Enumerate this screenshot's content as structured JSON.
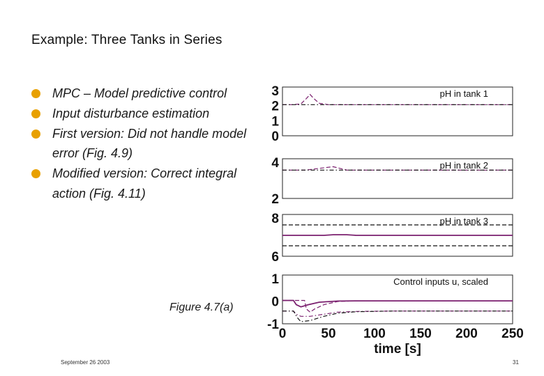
{
  "slide": {
    "title": "Example: Three Tanks in Series",
    "bullets": [
      "MPC – Model predictive control",
      "Input disturbance estimation",
      "First version: Did not handle model error (Fig. 4.9)",
      "Modified version: Correct integral action (Fig. 4.11)"
    ],
    "caption": "Figure 4.7(a)",
    "footer_date": "September 26 2003",
    "page_number": "31"
  },
  "colors": {
    "bullet": "#e8a000",
    "series_primary": "#7a1f6e",
    "series_reference": "#111111"
  },
  "chart_data": [
    {
      "type": "line",
      "title": "pH in tank 1",
      "ylim": [
        -0.3,
        3.3
      ],
      "yticks": [
        "3",
        "2",
        "1",
        "0"
      ],
      "xlim": [
        0,
        250
      ],
      "series": [
        {
          "style": "dashed",
          "color": "#7a1f6e",
          "x": [
            0,
            10,
            20,
            26,
            30,
            34,
            40,
            50,
            250
          ],
          "y": [
            2.0,
            2.0,
            2.05,
            2.45,
            2.75,
            2.45,
            2.1,
            2.0,
            2.0
          ]
        },
        {
          "style": "dash-dot",
          "color": "#111111",
          "x": [
            0,
            250
          ],
          "y": [
            2.0,
            2.0
          ]
        }
      ]
    },
    {
      "type": "line",
      "title": "pH in tank 2",
      "ylim": [
        1.5,
        5.0
      ],
      "yticks": [
        "4",
        "2"
      ],
      "xlim": [
        0,
        250
      ],
      "series": [
        {
          "style": "dashed",
          "color": "#7a1f6e",
          "x": [
            0,
            25,
            40,
            55,
            70,
            250
          ],
          "y": [
            4.0,
            4.0,
            4.15,
            4.3,
            4.0,
            4.0
          ]
        },
        {
          "style": "dash-dot",
          "color": "#111111",
          "x": [
            0,
            250
          ],
          "y": [
            4.0,
            4.0
          ]
        }
      ]
    },
    {
      "type": "line",
      "title": "pH in tank 3",
      "ylim": [
        5.0,
        9.0
      ],
      "yticks": [
        "8",
        "6"
      ],
      "xlim": [
        0,
        250
      ],
      "series": [
        {
          "style": "solid",
          "color": "#7a1f6e",
          "x": [
            0,
            45,
            55,
            70,
            80,
            250
          ],
          "y": [
            7.0,
            7.0,
            7.06,
            7.06,
            7.0,
            7.0
          ]
        },
        {
          "style": "dashed",
          "color": "#111111",
          "x": [
            0,
            250
          ],
          "y": [
            8.0,
            8.0
          ]
        },
        {
          "style": "dashed",
          "color": "#111111",
          "x": [
            0,
            250
          ],
          "y": [
            6.0,
            6.0
          ]
        }
      ]
    },
    {
      "type": "line",
      "title": "Control inputs u, scaled",
      "ylim": [
        -1.1,
        1.2
      ],
      "yticks": [
        "1",
        "0",
        "-1"
      ],
      "xlim": [
        0,
        250
      ],
      "xticks": [
        "0",
        "50",
        "100",
        "150",
        "200",
        "250"
      ],
      "xlabel": "time [s]",
      "series": [
        {
          "style": "solid",
          "color": "#7a1f6e",
          "x": [
            0,
            12,
            15,
            20,
            28,
            40,
            60,
            80,
            100,
            250
          ],
          "y": [
            0.0,
            0.0,
            -0.2,
            -0.3,
            -0.2,
            -0.08,
            -0.03,
            -0.02,
            -0.02,
            -0.02
          ]
        },
        {
          "style": "dashed",
          "color": "#7a1f6e",
          "x": [
            0,
            24,
            26,
            30,
            35,
            45,
            60,
            80,
            250
          ],
          "y": [
            0.0,
            0.0,
            -0.4,
            -0.55,
            -0.4,
            -0.2,
            -0.05,
            -0.02,
            -0.02
          ]
        },
        {
          "style": "dash-dot",
          "color": "#7a1f6e",
          "x": [
            0,
            12,
            15,
            20,
            30,
            45,
            60,
            80,
            120,
            250
          ],
          "y": [
            -0.5,
            -0.5,
            -0.65,
            -0.75,
            -0.75,
            -0.65,
            -0.55,
            -0.52,
            -0.5,
            -0.5
          ]
        },
        {
          "style": "dash-dot",
          "color": "#111111",
          "x": [
            0,
            12,
            16,
            20,
            30,
            45,
            60,
            80,
            120,
            250
          ],
          "y": [
            -0.5,
            -0.5,
            -0.8,
            -1.0,
            -0.95,
            -0.75,
            -0.6,
            -0.53,
            -0.5,
            -0.5
          ]
        }
      ]
    }
  ]
}
